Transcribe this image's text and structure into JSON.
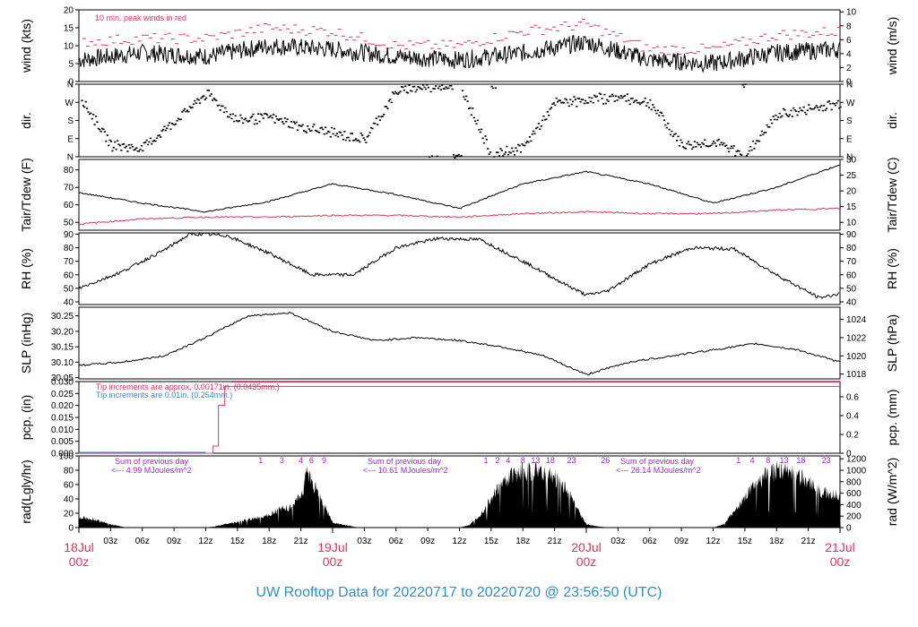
{
  "footer": {
    "title": "UW Rooftop Data for 20220717  to  20220720 @ 23:56:50  (UTC)",
    "color": "#2b8fd0"
  },
  "colors": {
    "series_black": "#000000",
    "series_red": "#d9385a",
    "annot_purple": "#a020f0",
    "annot_blue": "#2b8fd0",
    "date_red": "#d9385a"
  },
  "x_axis": {
    "range_hours": [
      0,
      72
    ],
    "hour_ticks": [
      {
        "h": 3,
        "label": "03z"
      },
      {
        "h": 6,
        "label": "06z"
      },
      {
        "h": 9,
        "label": "09z"
      },
      {
        "h": 12,
        "label": "12z"
      },
      {
        "h": 15,
        "label": "15z"
      },
      {
        "h": 18,
        "label": "18z"
      },
      {
        "h": 21,
        "label": "21z"
      },
      {
        "h": 27,
        "label": "03z"
      },
      {
        "h": 30,
        "label": "06z"
      },
      {
        "h": 33,
        "label": "09z"
      },
      {
        "h": 36,
        "label": "12z"
      },
      {
        "h": 39,
        "label": "15z"
      },
      {
        "h": 42,
        "label": "18z"
      },
      {
        "h": 45,
        "label": "21z"
      },
      {
        "h": 51,
        "label": "03z"
      },
      {
        "h": 54,
        "label": "06z"
      },
      {
        "h": 57,
        "label": "09z"
      },
      {
        "h": 60,
        "label": "12z"
      },
      {
        "h": 63,
        "label": "15z"
      },
      {
        "h": 66,
        "label": "18z"
      },
      {
        "h": 69,
        "label": "21z"
      }
    ],
    "day_ticks": [
      {
        "h": 0,
        "date": "18Jul",
        "time": "00z"
      },
      {
        "h": 24,
        "date": "19Jul",
        "time": "00z"
      },
      {
        "h": 48,
        "date": "20Jul",
        "time": "00z"
      },
      {
        "h": 72,
        "date": "21Jul",
        "time": "00z"
      }
    ]
  },
  "panels": {
    "wind": {
      "left_label": "wind (kts)",
      "right_label": "wind (m/s)",
      "left_ticks": [
        "0",
        "5",
        "10",
        "15",
        "20"
      ],
      "right_ticks": [
        "0",
        "2",
        "4",
        "6",
        "8",
        "10"
      ],
      "note": "10 min. peak winds in red"
    },
    "dir": {
      "left_label": "dir.",
      "right_label": "dir.",
      "ticks": [
        "N",
        "E",
        "S",
        "W",
        "N"
      ]
    },
    "temp": {
      "left_label": "Tair/Tdew (F)",
      "right_label": "Tair/Tdew (C)",
      "left_ticks": [
        "50",
        "60",
        "70",
        "80"
      ],
      "right_ticks": [
        "10",
        "15",
        "20",
        "25",
        "30"
      ]
    },
    "rh": {
      "left_label": "RH (%)",
      "right_label": "RH (%)",
      "ticks": [
        "40",
        "50",
        "60",
        "70",
        "80",
        "90"
      ]
    },
    "slp": {
      "left_label": "SLP (inHg)",
      "right_label": "SLP (hPa)",
      "left_ticks": [
        "30.05",
        "30.10",
        "30.15",
        "30.20",
        "30.25"
      ],
      "right_ticks": [
        "1018",
        "1020",
        "1022",
        "1024"
      ]
    },
    "pcp": {
      "left_label": "pcp. (in)",
      "right_label": "pcp. (mm)",
      "left_ticks": [
        "0.000",
        "0.005",
        "0.010",
        "0.015",
        "0.020",
        "0.025",
        "0.030"
      ],
      "right_ticks": [
        "0",
        "0.2",
        "0.4",
        "0.6"
      ],
      "note1": "Tip increments are approx. 0.00171in. (0.0435mm.)",
      "note2": "Tip increments are 0.01in. (0.254mm.)"
    },
    "rad": {
      "left_label": "rad(Lgly/hr)",
      "right_label": "rad (W/m^2)",
      "left_ticks": [
        "0",
        "20",
        "40",
        "60",
        "80",
        "100"
      ],
      "right_ticks": [
        "0",
        "200",
        "400",
        "600",
        "800",
        "1000",
        "1200"
      ],
      "sums": [
        {
          "title": "Sum of previous day",
          "value": "<--- 4.99 MJoules/m^2"
        },
        {
          "title": "Sum of previous day",
          "value": "<--- 10.61 MJoules/m^2"
        },
        {
          "title": "Sum of previous day",
          "value": "<--- 26.14 MJoules/m^2"
        }
      ],
      "uv_marks": [
        {
          "h": 17.2,
          "label": "1"
        },
        {
          "h": 19.2,
          "label": "3"
        },
        {
          "h": 21.0,
          "label": "4"
        },
        {
          "h": 22.0,
          "label": "6"
        },
        {
          "h": 23.2,
          "label": "9"
        },
        {
          "h": 38.5,
          "label": "1"
        },
        {
          "h": 39.6,
          "label": "2"
        },
        {
          "h": 40.6,
          "label": "4"
        },
        {
          "h": 42.0,
          "label": "8"
        },
        {
          "h": 43.2,
          "label": "13"
        },
        {
          "h": 44.6,
          "label": "18"
        },
        {
          "h": 46.6,
          "label": "23"
        },
        {
          "h": 49.8,
          "label": "26"
        },
        {
          "h": 62.4,
          "label": "1"
        },
        {
          "h": 63.7,
          "label": "4"
        },
        {
          "h": 65.2,
          "label": "8"
        },
        {
          "h": 66.7,
          "label": "13"
        },
        {
          "h": 68.3,
          "label": "18"
        },
        {
          "h": 70.7,
          "label": "23"
        }
      ]
    }
  },
  "chart_data": {
    "type": "line",
    "x_unit": "hours since 18Jul 00z",
    "wind_kts": {
      "x": [
        0,
        6,
        12,
        18,
        24,
        30,
        36,
        42,
        48,
        54,
        60,
        66,
        72
      ],
      "y": [
        6,
        8,
        7,
        10,
        9,
        7,
        6,
        8,
        11,
        6,
        5,
        8,
        9
      ],
      "gust_y": [
        11,
        12,
        12,
        15,
        14,
        10,
        10,
        14,
        16,
        9,
        9,
        13,
        14
      ]
    },
    "dir_deg": {
      "x": [
        0,
        3,
        6,
        12,
        15,
        18,
        21,
        24,
        27,
        30,
        33,
        36,
        39,
        42,
        45,
        48,
        51,
        54,
        57,
        60,
        63,
        66,
        69,
        72
      ],
      "y": [
        300,
        60,
        45,
        315,
        180,
        200,
        150,
        120,
        90,
        330,
        350,
        360,
        5,
        50,
        270,
        285,
        300,
        270,
        60,
        75,
        10,
        210,
        240,
        270
      ]
    },
    "tair_f": {
      "x": [
        0,
        6,
        12,
        18,
        24,
        30,
        36,
        42,
        48,
        54,
        60,
        66,
        72
      ],
      "y": [
        67,
        61,
        56,
        62,
        72,
        66,
        58,
        72,
        79,
        72,
        61,
        70,
        83
      ]
    },
    "tdew_f": {
      "x": [
        0,
        6,
        12,
        18,
        24,
        30,
        36,
        42,
        48,
        54,
        60,
        66,
        72
      ],
      "y": [
        49,
        52,
        53,
        53,
        54,
        54,
        53,
        55,
        56,
        55,
        55,
        57,
        58
      ]
    },
    "rh_pct": {
      "x": [
        0,
        4,
        8,
        10.5,
        12,
        14,
        18,
        22,
        26,
        30,
        34,
        38,
        42,
        46,
        48,
        50,
        54,
        58,
        62,
        66,
        70,
        72
      ],
      "y": [
        50,
        62,
        78,
        90,
        90,
        89,
        76,
        60,
        60,
        80,
        87,
        86,
        70,
        53,
        45,
        48,
        68,
        80,
        79,
        60,
        43,
        46
      ]
    },
    "slp_inhg": {
      "x": [
        0,
        4,
        8,
        12,
        16,
        20,
        24,
        28,
        32,
        36,
        40,
        44,
        48,
        52,
        56,
        60,
        64,
        68,
        72
      ],
      "y": [
        30.09,
        30.1,
        30.12,
        30.18,
        30.25,
        30.26,
        30.2,
        30.17,
        30.18,
        30.17,
        30.15,
        30.12,
        30.06,
        30.1,
        30.12,
        30.14,
        30.16,
        30.14,
        30.1
      ]
    },
    "pcp_in": {
      "x": [
        0,
        12,
        12.7,
        13.2,
        13.8,
        15,
        72
      ],
      "y": [
        0,
        0,
        0.003,
        0.02,
        0.028,
        0.028,
        0.028
      ]
    },
    "rad_lgly_hr": {
      "x": [
        0.3,
        1.5,
        3,
        4.5,
        12,
        13,
        14,
        15,
        16,
        17,
        18,
        19,
        20,
        20.6,
        21.2,
        21.5,
        22,
        23,
        24,
        25,
        26.5,
        36,
        37,
        38,
        39,
        40,
        41,
        42,
        43,
        44,
        45,
        46,
        47,
        47.6,
        48,
        49,
        50,
        60,
        61,
        62,
        63,
        64,
        65,
        66,
        67,
        68,
        69,
        70,
        71,
        72
      ],
      "y": [
        15,
        12,
        5,
        0,
        0,
        2,
        6,
        8,
        12,
        15,
        20,
        28,
        30,
        40,
        55,
        88,
        70,
        40,
        8,
        4,
        0,
        0,
        4,
        20,
        45,
        65,
        78,
        85,
        85,
        82,
        75,
        60,
        35,
        15,
        5,
        2,
        0,
        0,
        5,
        25,
        45,
        65,
        78,
        85,
        85,
        80,
        70,
        55,
        50,
        48
      ]
    },
    "xlim": [
      0,
      72
    ]
  }
}
